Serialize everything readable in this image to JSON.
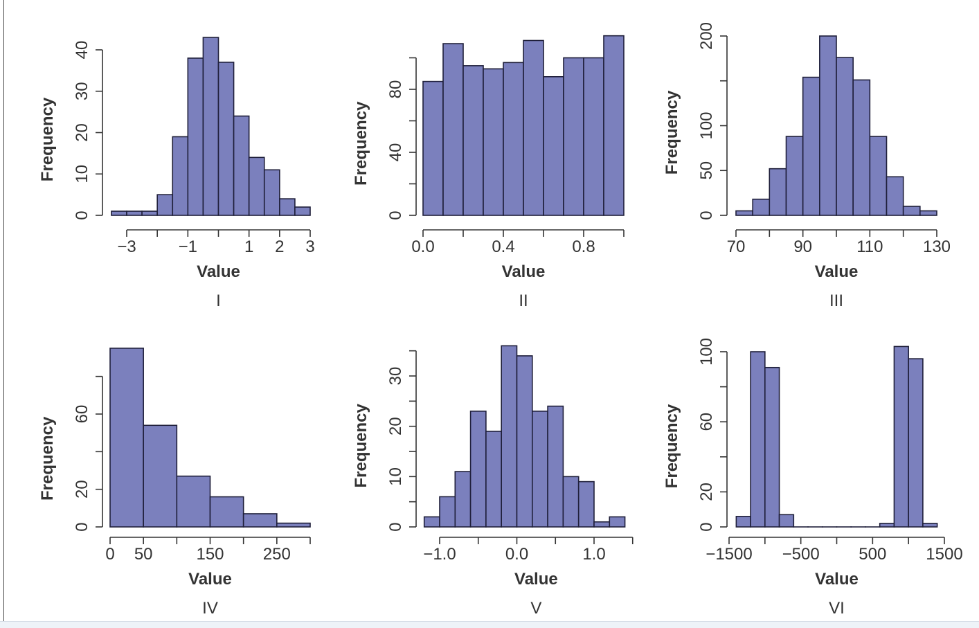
{
  "chart_data": [
    {
      "type": "bar",
      "panel": "I",
      "xlabel": "Value",
      "ylabel": "Frequency",
      "breaks": [
        -3.5,
        -3,
        -2.5,
        -2,
        -1.5,
        -1,
        -0.5,
        0,
        0.5,
        1,
        1.5,
        2,
        2.5,
        3
      ],
      "counts": [
        1,
        1,
        1,
        5,
        19,
        38,
        43,
        37,
        24,
        14,
        11,
        4,
        2
      ],
      "xticks": [
        -3,
        -2,
        -1,
        0,
        1,
        2,
        3
      ],
      "xtick_labels": [
        "−3",
        "",
        "−1",
        "",
        "1",
        "2",
        "3"
      ],
      "yticks": [
        0,
        10,
        20,
        30,
        40
      ],
      "ytick_labels": [
        "0",
        "10",
        "20",
        "30",
        "40"
      ]
    },
    {
      "type": "bar",
      "panel": "II",
      "xlabel": "Value",
      "ylabel": "Frequency",
      "breaks": [
        0,
        0.1,
        0.2,
        0.3,
        0.4,
        0.5,
        0.6,
        0.7,
        0.8,
        0.9,
        1.0
      ],
      "counts": [
        85,
        109,
        95,
        93,
        97,
        111,
        88,
        100,
        100,
        114
      ],
      "xticks": [
        0,
        0.2,
        0.4,
        0.6,
        0.8,
        1.0
      ],
      "xtick_labels": [
        "0.0",
        "",
        "0.4",
        "",
        "0.8",
        ""
      ],
      "yticks": [
        0,
        20,
        40,
        60,
        80,
        100
      ],
      "ytick_labels": [
        "0",
        "",
        "40",
        "",
        "80",
        ""
      ]
    },
    {
      "type": "bar",
      "panel": "III",
      "xlabel": "Value",
      "ylabel": "Frequency",
      "breaks": [
        70,
        75,
        80,
        85,
        90,
        95,
        100,
        105,
        110,
        115,
        120,
        125,
        130
      ],
      "counts": [
        5,
        18,
        52,
        88,
        154,
        200,
        176,
        151,
        88,
        43,
        10,
        5
      ],
      "xticks": [
        70,
        80,
        90,
        100,
        110,
        120,
        130
      ],
      "xtick_labels": [
        "70",
        "",
        "90",
        "",
        "110",
        "",
        "130"
      ],
      "yticks": [
        0,
        50,
        100,
        150,
        200
      ],
      "ytick_labels": [
        "0",
        "50",
        "100",
        "",
        "200"
      ]
    },
    {
      "type": "bar",
      "panel": "IV",
      "xlabel": "Value",
      "ylabel": "Frequency",
      "breaks": [
        0,
        50,
        100,
        150,
        200,
        250,
        300
      ],
      "counts": [
        95,
        54,
        27,
        16,
        7,
        2
      ],
      "xticks": [
        0,
        50,
        100,
        150,
        200,
        250,
        300
      ],
      "xtick_labels": [
        "0",
        "50",
        "",
        "150",
        "",
        "250",
        ""
      ],
      "yticks": [
        0,
        20,
        40,
        60,
        80
      ],
      "ytick_labels": [
        "0",
        "20",
        "",
        "60",
        ""
      ]
    },
    {
      "type": "bar",
      "panel": "V",
      "xlabel": "Value",
      "ylabel": "Frequency",
      "breaks": [
        -1.2,
        -1.0,
        -0.8,
        -0.6,
        -0.4,
        -0.2,
        0,
        0.2,
        0.4,
        0.6,
        0.8,
        1.0,
        1.2,
        1.4
      ],
      "counts": [
        2,
        6,
        11,
        23,
        19,
        36,
        34,
        23,
        24,
        10,
        9,
        1,
        2
      ],
      "xticks": [
        -1.0,
        -0.5,
        0,
        0.5,
        1.0,
        1.5
      ],
      "xtick_labels": [
        "−1.0",
        "",
        "0.0",
        "",
        "1.0",
        ""
      ],
      "yticks": [
        0,
        5,
        10,
        15,
        20,
        25,
        30,
        35
      ],
      "ytick_labels": [
        "0",
        "",
        "10",
        "",
        "20",
        "",
        "30",
        ""
      ]
    },
    {
      "type": "bar",
      "panel": "VI",
      "xlabel": "Value",
      "ylabel": "Frequency",
      "breaks": [
        -1400,
        -1200,
        -1000,
        -800,
        -600,
        -400,
        -200,
        0,
        200,
        400,
        600,
        800,
        1000,
        1200,
        1400
      ],
      "counts": [
        6,
        100,
        91,
        7,
        0,
        0,
        0,
        0,
        0,
        0,
        2,
        103,
        96,
        2
      ],
      "xticks": [
        -1500,
        -1000,
        -500,
        0,
        500,
        1000,
        1500
      ],
      "xtick_labels": [
        "−1500",
        "",
        "−500",
        "",
        "500",
        "",
        "1500"
      ],
      "yticks": [
        0,
        20,
        40,
        60,
        80,
        100
      ],
      "ytick_labels": [
        "0",
        "20",
        "",
        "60",
        "",
        "100"
      ]
    }
  ],
  "colors": {
    "bar_fill": "#7b80bd",
    "bar_stroke": "#1f1f3a"
  }
}
